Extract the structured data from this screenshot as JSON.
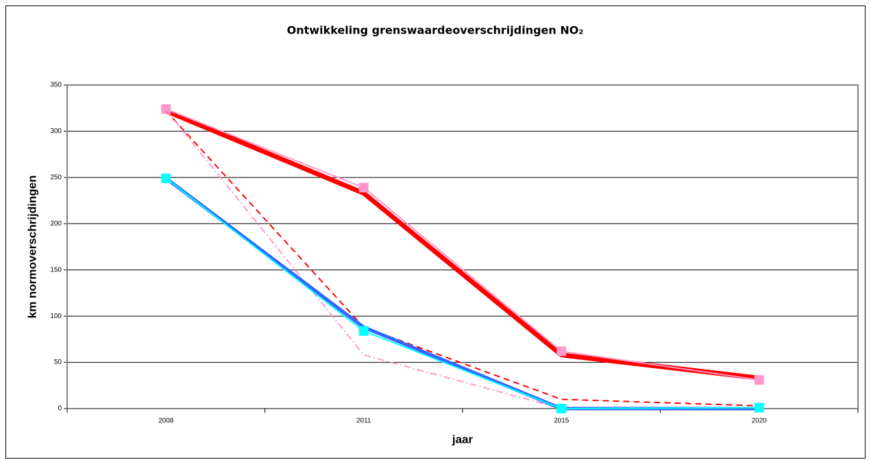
{
  "chart_data": {
    "type": "line",
    "title": "Ontwikkeling grenswaardeoverschrijdingen NO₂",
    "xlabel": "jaar",
    "ylabel": "km normoverschrijdingen",
    "categories": [
      "2008",
      "2011",
      "2015",
      "2020"
    ],
    "ylim": [
      0,
      350
    ],
    "yticks": [
      0,
      50,
      100,
      150,
      200,
      250,
      300,
      350
    ],
    "grid": true,
    "series": [
      {
        "color": "#ff0000",
        "width": 7,
        "values": [
          322,
          233,
          58,
          33
        ]
      },
      {
        "color": "#ff99cc",
        "width": 2,
        "marker": "square",
        "values": [
          324,
          239,
          62,
          31
        ]
      },
      {
        "color": "#ff0000",
        "width": 2,
        "dash": "9,6",
        "values": [
          322,
          88,
          10,
          3
        ]
      },
      {
        "color": "#ff99cc",
        "width": 2,
        "dash": "10,4,2,4",
        "values": [
          323,
          58,
          0,
          0
        ]
      },
      {
        "color": "#3366ff",
        "width": 5,
        "values": [
          249,
          88,
          0,
          0
        ]
      },
      {
        "color": "#00ffff",
        "width": 2,
        "marker": "square",
        "values": [
          249,
          84,
          0,
          1
        ]
      }
    ]
  }
}
